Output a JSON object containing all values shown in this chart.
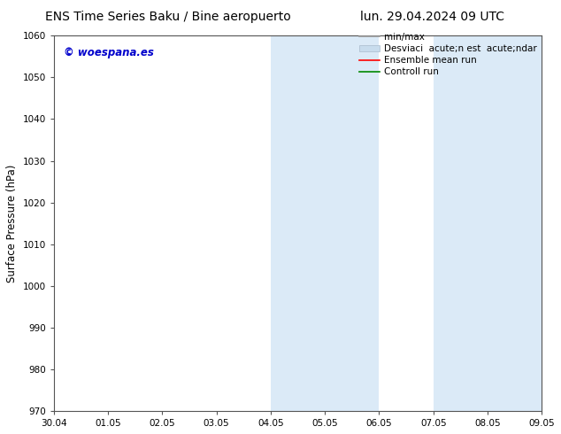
{
  "title_left": "ENS Time Series Baku / Bine aeropuerto",
  "title_right": "lun. 29.04.2024 09 UTC",
  "ylabel": "Surface Pressure (hPa)",
  "ylim": [
    970,
    1060
  ],
  "yticks": [
    970,
    980,
    990,
    1000,
    1010,
    1020,
    1030,
    1040,
    1050,
    1060
  ],
  "xtick_labels": [
    "30.04",
    "01.05",
    "02.05",
    "03.05",
    "04.05",
    "05.05",
    "06.05",
    "07.05",
    "08.05",
    "09.05"
  ],
  "xtick_positions": [
    0,
    1,
    2,
    3,
    4,
    5,
    6,
    7,
    8,
    9
  ],
  "xlim": [
    0,
    9
  ],
  "shaded_regions": [
    {
      "xmin": 4.0,
      "xmax": 6.0,
      "color": "#dbeaf7"
    },
    {
      "xmin": 7.0,
      "xmax": 9.0,
      "color": "#dbeaf7"
    }
  ],
  "watermark_text": "© woespana.es",
  "watermark_color": "#0000cc",
  "legend_min_max_color": "#999999",
  "legend_std_color": "#c8dced",
  "legend_ensemble_color": "#ff0000",
  "legend_control_color": "#008800",
  "bg_color": "#ffffff",
  "plot_bg_color": "#ffffff",
  "spine_color": "#555555",
  "title_fontsize": 10,
  "tick_fontsize": 7.5,
  "ylabel_fontsize": 8.5,
  "legend_fontsize": 7.5,
  "watermark_fontsize": 8.5
}
